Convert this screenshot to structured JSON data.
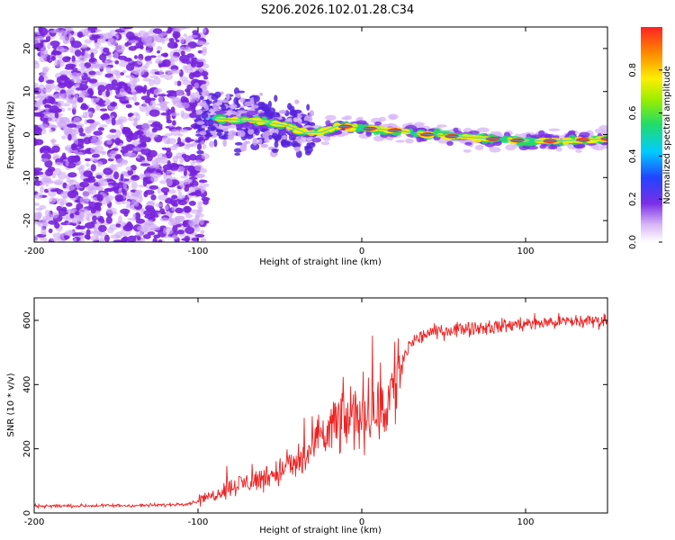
{
  "title": "S206.2026.102.01.28.C34",
  "colors": {
    "snr_line": "#ee2222",
    "frame": "#000000",
    "dot_sparse": "#cfa8f5",
    "dot_dense": "#7722dd"
  },
  "chart_data": [
    {
      "type": "heatmap",
      "name": "spectrogram",
      "xlabel": "Height of straight line (km)",
      "ylabel": "Frequency (Hz)",
      "xlim": [
        -200,
        150
      ],
      "ylim": [
        -25,
        25
      ],
      "xticks": [
        -200,
        -100,
        0,
        100
      ],
      "xtick_labels": [
        "-200",
        "-100",
        "0",
        "100"
      ],
      "yticks": [
        -20,
        -10,
        0,
        10,
        20
      ],
      "ytick_labels": [
        "-20",
        "-10",
        "0",
        "10",
        "20"
      ],
      "colorbar": {
        "label": "Normalized spectral amplitude",
        "ticks": [
          0.0,
          0.2,
          0.4,
          0.6,
          0.8
        ],
        "tick_labels": [
          "0.0",
          "0.2",
          "0.4",
          "0.6",
          "0.8"
        ],
        "range": [
          0,
          1
        ]
      },
      "ridge": {
        "x": [
          -100,
          -80,
          -60,
          -45,
          -35,
          -25,
          -15,
          0,
          20,
          40,
          60,
          80,
          100,
          120,
          150
        ],
        "freq_hz": [
          4,
          3.5,
          3,
          2,
          0.5,
          0.5,
          2,
          1.5,
          1,
          0,
          -0.5,
          -1,
          -1.5,
          -1.5,
          -1
        ]
      }
    },
    {
      "type": "line",
      "name": "snr",
      "xlabel": "Height of straight line (km)",
      "ylabel": "SNR (10 * v/v)",
      "xlim": [
        -200,
        150
      ],
      "ylim": [
        0,
        670
      ],
      "xticks": [
        -200,
        -100,
        0,
        100
      ],
      "xtick_labels": [
        "-200",
        "-100",
        "0",
        "100"
      ],
      "yticks": [
        0,
        200,
        400,
        600
      ],
      "ytick_labels": [
        "0",
        "200",
        "400",
        "600"
      ],
      "series": [
        {
          "name": "SNR",
          "x": [
            -200,
            -180,
            -160,
            -140,
            -120,
            -105,
            -95,
            -85,
            -75,
            -65,
            -55,
            -45,
            -35,
            -25,
            -15,
            -5,
            0,
            5,
            10,
            15,
            20,
            25,
            30,
            40,
            60,
            80,
            100,
            120,
            150
          ],
          "y": [
            22,
            22,
            23,
            23,
            25,
            30,
            45,
            70,
            90,
            100,
            120,
            140,
            170,
            230,
            280,
            300,
            310,
            330,
            300,
            340,
            400,
            480,
            530,
            560,
            575,
            580,
            590,
            595,
            600
          ]
        }
      ]
    }
  ]
}
